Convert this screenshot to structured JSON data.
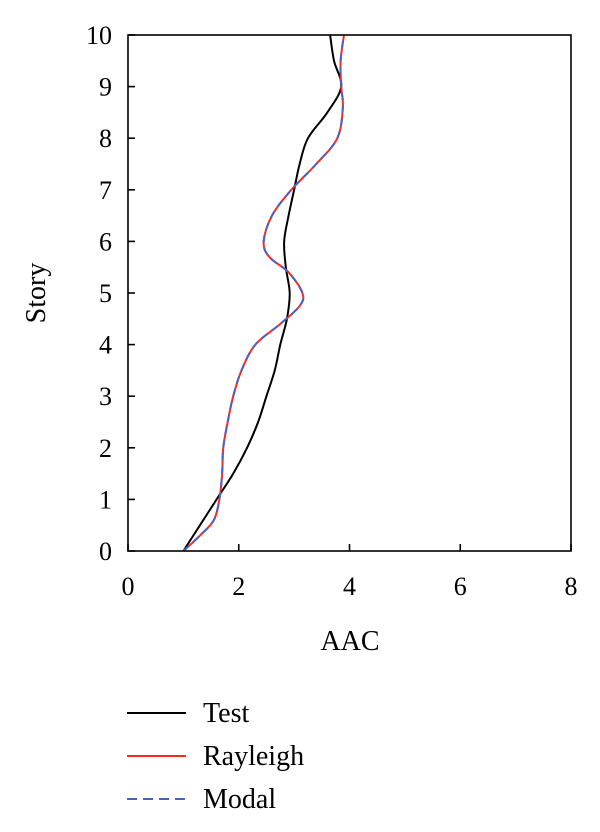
{
  "chart_data": {
    "type": "line",
    "title": "",
    "xlabel": "AAC",
    "ylabel": "Story",
    "xlim": [
      0,
      8
    ],
    "ylim": [
      0,
      10
    ],
    "xticks": [
      "0",
      "2",
      "4",
      "6",
      "8"
    ],
    "yticks": [
      "0",
      "1",
      "2",
      "3",
      "4",
      "5",
      "6",
      "7",
      "8",
      "9",
      "10"
    ],
    "grid": false,
    "legend_position": "bottom",
    "series": [
      {
        "name": "Test",
        "color": "#000000",
        "dash": "solid",
        "points": [
          [
            1.0,
            0.0
          ],
          [
            1.3,
            0.5
          ],
          [
            1.6,
            1.0
          ],
          [
            1.9,
            1.5
          ],
          [
            2.15,
            2.0
          ],
          [
            2.35,
            2.5
          ],
          [
            2.5,
            3.0
          ],
          [
            2.65,
            3.5
          ],
          [
            2.75,
            4.0
          ],
          [
            2.87,
            4.5
          ],
          [
            2.92,
            5.0
          ],
          [
            2.85,
            5.5
          ],
          [
            2.82,
            6.0
          ],
          [
            2.9,
            6.5
          ],
          [
            3.0,
            7.0
          ],
          [
            3.1,
            7.5
          ],
          [
            3.25,
            8.0
          ],
          [
            3.6,
            8.5
          ],
          [
            3.85,
            9.0
          ],
          [
            3.72,
            9.5
          ],
          [
            3.65,
            10.0
          ]
        ]
      },
      {
        "name": "Rayleigh",
        "color": "#ff2a1a",
        "dash": "solid",
        "points": [
          [
            1.0,
            0.0
          ],
          [
            1.3,
            0.3
          ],
          [
            1.55,
            0.6
          ],
          [
            1.65,
            1.0
          ],
          [
            1.7,
            1.5
          ],
          [
            1.72,
            2.0
          ],
          [
            1.8,
            2.5
          ],
          [
            1.9,
            3.0
          ],
          [
            2.05,
            3.5
          ],
          [
            2.3,
            4.0
          ],
          [
            2.75,
            4.4
          ],
          [
            3.1,
            4.75
          ],
          [
            3.15,
            5.0
          ],
          [
            2.9,
            5.4
          ],
          [
            2.55,
            5.7
          ],
          [
            2.45,
            6.0
          ],
          [
            2.6,
            6.5
          ],
          [
            2.95,
            7.0
          ],
          [
            3.4,
            7.5
          ],
          [
            3.78,
            8.0
          ],
          [
            3.88,
            8.6
          ],
          [
            3.85,
            9.0
          ],
          [
            3.84,
            9.5
          ],
          [
            3.9,
            10.0
          ]
        ]
      },
      {
        "name": "Modal",
        "color": "#4a5fc8",
        "dash": "dashed",
        "points": [
          [
            1.0,
            0.0
          ],
          [
            1.3,
            0.3
          ],
          [
            1.55,
            0.6
          ],
          [
            1.65,
            1.0
          ],
          [
            1.7,
            1.5
          ],
          [
            1.72,
            2.0
          ],
          [
            1.8,
            2.5
          ],
          [
            1.9,
            3.0
          ],
          [
            2.05,
            3.5
          ],
          [
            2.3,
            4.0
          ],
          [
            2.75,
            4.4
          ],
          [
            3.1,
            4.75
          ],
          [
            3.15,
            5.0
          ],
          [
            2.9,
            5.4
          ],
          [
            2.55,
            5.7
          ],
          [
            2.45,
            6.0
          ],
          [
            2.6,
            6.5
          ],
          [
            2.95,
            7.0
          ],
          [
            3.4,
            7.5
          ],
          [
            3.78,
            8.0
          ],
          [
            3.88,
            8.6
          ],
          [
            3.85,
            9.0
          ],
          [
            3.84,
            9.5
          ],
          [
            3.9,
            10.0
          ]
        ]
      }
    ]
  }
}
